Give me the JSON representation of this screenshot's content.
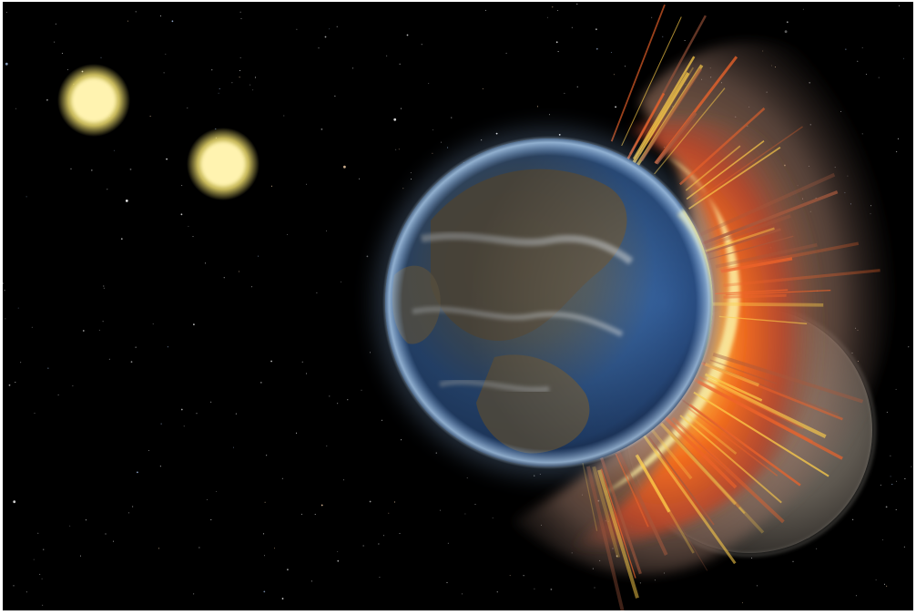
{
  "scene": {
    "subject": "planetary-collision",
    "colors": {
      "space": "#000000",
      "star_core": "#fff7c2",
      "star_glow": "#f7e98a",
      "ocean": "#2f5f9e",
      "land": "#6b5f4a",
      "cloud": "#d9dde0",
      "fire_inner": "#ffe36a",
      "fire_mid": "#f26b1d",
      "fire_outer": "#8a3b1e",
      "debris": "#8a7465",
      "impactor": "#7a7268",
      "frame": "#ffffff"
    },
    "elements": {
      "sun_count": 2,
      "planet_count": 2
    }
  }
}
